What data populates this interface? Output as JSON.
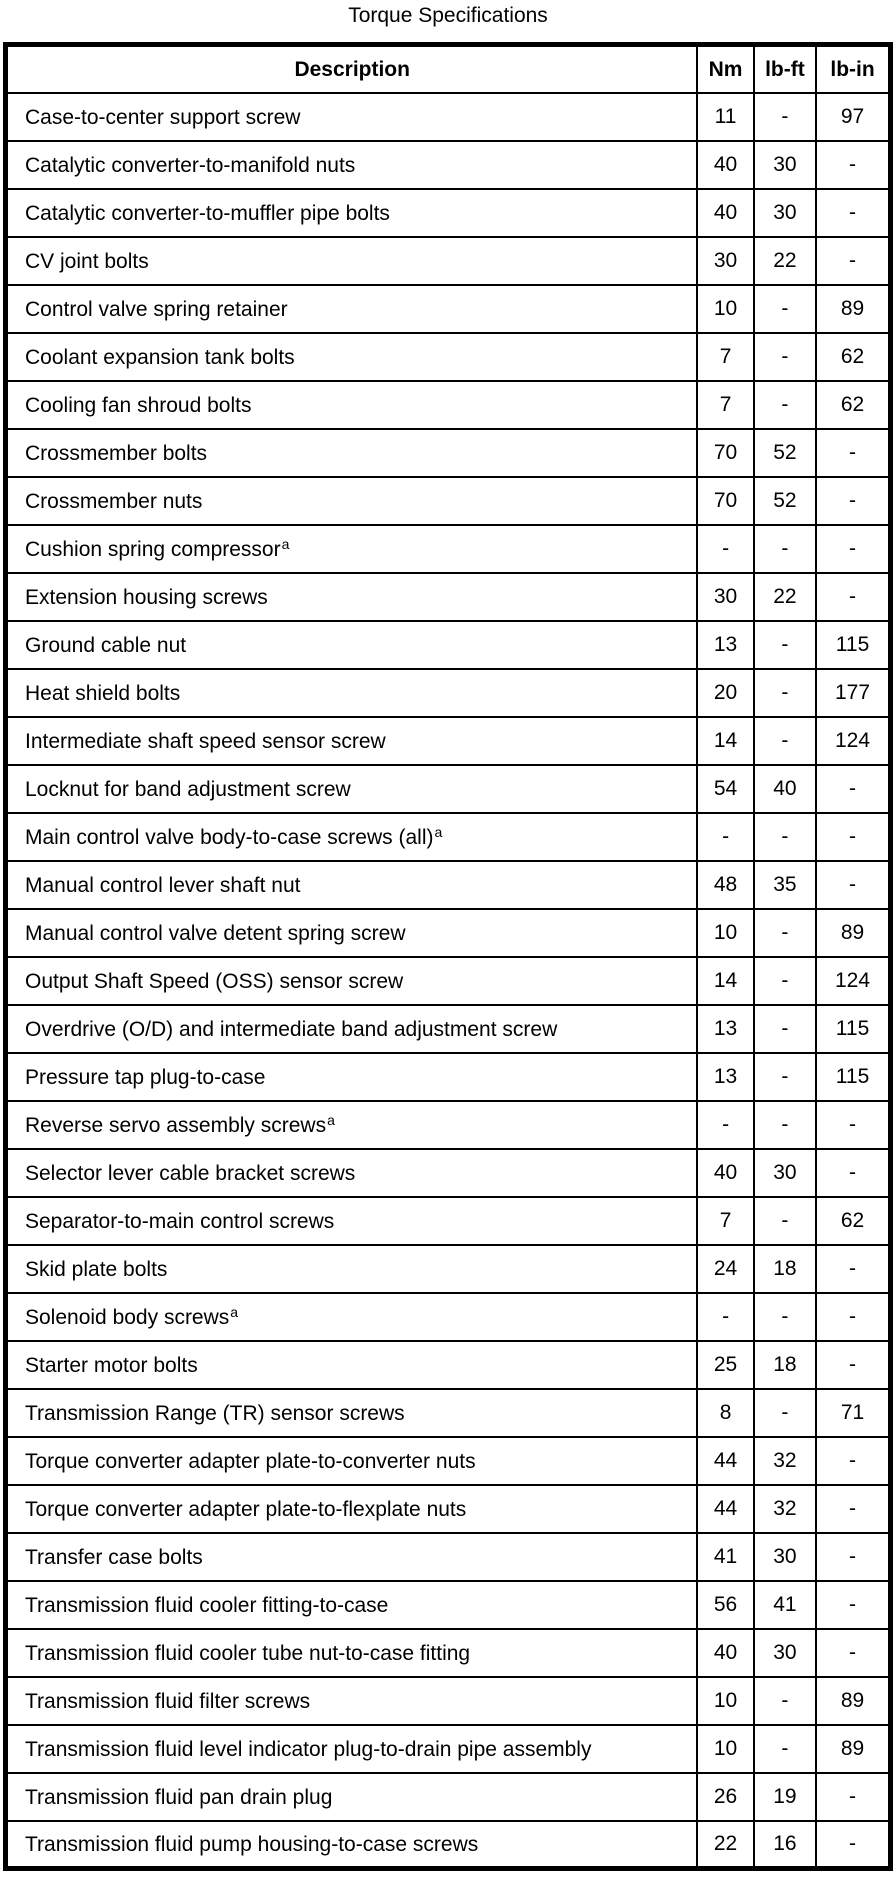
{
  "page_title": "Torque Specifications",
  "table": {
    "headers": {
      "description": "Description",
      "nm": "Nm",
      "lbft": "lb-ft",
      "lbin": "lb-in"
    },
    "footnote_marker": "a",
    "rows": [
      {
        "description": "Case-to-center support screw",
        "sup": "",
        "nm": "11",
        "lbft": "-",
        "lbin": "97"
      },
      {
        "description": "Catalytic converter-to-manifold nuts",
        "sup": "",
        "nm": "40",
        "lbft": "30",
        "lbin": "-"
      },
      {
        "description": "Catalytic converter-to-muffler pipe bolts",
        "sup": "",
        "nm": "40",
        "lbft": "30",
        "lbin": "-"
      },
      {
        "description": "CV joint bolts",
        "sup": "",
        "nm": "30",
        "lbft": "22",
        "lbin": "-"
      },
      {
        "description": "Control valve spring retainer",
        "sup": "",
        "nm": "10",
        "lbft": "-",
        "lbin": "89"
      },
      {
        "description": "Coolant expansion tank bolts",
        "sup": "",
        "nm": "7",
        "lbft": "-",
        "lbin": "62"
      },
      {
        "description": "Cooling fan shroud bolts",
        "sup": "",
        "nm": "7",
        "lbft": "-",
        "lbin": "62"
      },
      {
        "description": "Crossmember bolts",
        "sup": "",
        "nm": "70",
        "lbft": "52",
        "lbin": "-"
      },
      {
        "description": "Crossmember nuts",
        "sup": "",
        "nm": "70",
        "lbft": "52",
        "lbin": "-"
      },
      {
        "description": "Cushion spring compressor",
        "sup": "a",
        "nm": "-",
        "lbft": "-",
        "lbin": "-"
      },
      {
        "description": "Extension housing screws",
        "sup": "",
        "nm": "30",
        "lbft": "22",
        "lbin": "-"
      },
      {
        "description": "Ground cable nut",
        "sup": "",
        "nm": "13",
        "lbft": "-",
        "lbin": "115"
      },
      {
        "description": "Heat shield bolts",
        "sup": "",
        "nm": "20",
        "lbft": "-",
        "lbin": "177"
      },
      {
        "description": "Intermediate shaft speed sensor screw",
        "sup": "",
        "nm": "14",
        "lbft": "-",
        "lbin": "124"
      },
      {
        "description": "Locknut for band adjustment screw",
        "sup": "",
        "nm": "54",
        "lbft": "40",
        "lbin": "-"
      },
      {
        "description": "Main control valve body-to-case screws (all)",
        "sup": "a",
        "nm": "-",
        "lbft": "-",
        "lbin": "-"
      },
      {
        "description": "Manual control lever shaft nut",
        "sup": "",
        "nm": "48",
        "lbft": "35",
        "lbin": "-"
      },
      {
        "description": "Manual control valve detent spring screw",
        "sup": "",
        "nm": "10",
        "lbft": "-",
        "lbin": "89"
      },
      {
        "description": "Output Shaft Speed (OSS) sensor screw",
        "sup": "",
        "nm": "14",
        "lbft": "-",
        "lbin": "124"
      },
      {
        "description": "Overdrive (O/D) and intermediate band adjustment screw",
        "sup": "",
        "nm": "13",
        "lbft": "-",
        "lbin": "115"
      },
      {
        "description": "Pressure tap plug-to-case",
        "sup": "",
        "nm": "13",
        "lbft": "-",
        "lbin": "115"
      },
      {
        "description": "Reverse servo assembly screws",
        "sup": "a",
        "nm": "-",
        "lbft": "-",
        "lbin": "-"
      },
      {
        "description": "Selector lever cable bracket screws",
        "sup": "",
        "nm": "40",
        "lbft": "30",
        "lbin": "-"
      },
      {
        "description": "Separator-to-main control screws",
        "sup": "",
        "nm": "7",
        "lbft": "-",
        "lbin": "62"
      },
      {
        "description": "Skid plate bolts",
        "sup": "",
        "nm": "24",
        "lbft": "18",
        "lbin": "-"
      },
      {
        "description": "Solenoid body screws",
        "sup": "a",
        "nm": "-",
        "lbft": "-",
        "lbin": "-"
      },
      {
        "description": "Starter motor bolts",
        "sup": "",
        "nm": "25",
        "lbft": "18",
        "lbin": "-"
      },
      {
        "description": "Transmission Range (TR) sensor screws",
        "sup": "",
        "nm": "8",
        "lbft": "-",
        "lbin": "71"
      },
      {
        "description": "Torque converter adapter plate-to-converter nuts",
        "sup": "",
        "nm": "44",
        "lbft": "32",
        "lbin": "-"
      },
      {
        "description": "Torque converter adapter plate-to-flexplate nuts",
        "sup": "",
        "nm": "44",
        "lbft": "32",
        "lbin": "-"
      },
      {
        "description": "Transfer case bolts",
        "sup": "",
        "nm": "41",
        "lbft": "30",
        "lbin": "-"
      },
      {
        "description": "Transmission fluid cooler fitting-to-case",
        "sup": "",
        "nm": "56",
        "lbft": "41",
        "lbin": "-"
      },
      {
        "description": "Transmission fluid cooler tube nut-to-case fitting",
        "sup": "",
        "nm": "40",
        "lbft": "30",
        "lbin": "-"
      },
      {
        "description": "Transmission fluid filter screws",
        "sup": "",
        "nm": "10",
        "lbft": "-",
        "lbin": "89"
      },
      {
        "description": "Transmission fluid level indicator plug-to-drain pipe assembly",
        "sup": "",
        "nm": "10",
        "lbft": "-",
        "lbin": "89"
      },
      {
        "description": "Transmission fluid pan drain plug",
        "sup": "",
        "nm": "26",
        "lbft": "19",
        "lbin": "-"
      },
      {
        "description": "Transmission fluid pump housing-to-case screws",
        "sup": "",
        "nm": "22",
        "lbft": "16",
        "lbin": "-"
      }
    ]
  }
}
